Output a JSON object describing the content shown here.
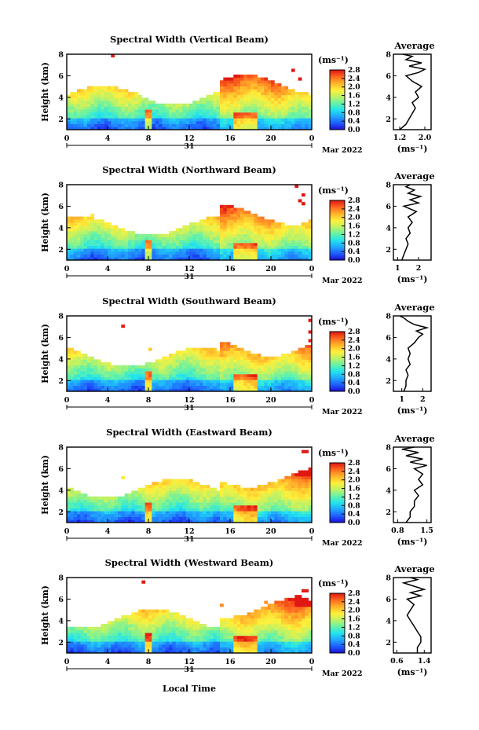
{
  "colorbar": {
    "min": 0.0,
    "max": 2.8,
    "tick_labels": [
      "2.8",
      "2.4",
      "2.0",
      "1.6",
      "1.2",
      "0.8",
      "0.4",
      "0.0"
    ],
    "unit_label": "(ms⁻¹)",
    "colors": [
      "#1a0ad0",
      "#1f5bff",
      "#20a5ff",
      "#22e3ee",
      "#63f2a8",
      "#bdf266",
      "#fff03a",
      "#ffb52a",
      "#ff6a20",
      "#e01712"
    ]
  },
  "common": {
    "y_label": "Height (km)",
    "x_ticks": [
      "0",
      "4",
      "8",
      "12",
      "16",
      "20",
      "0"
    ],
    "date_day": "31",
    "date_month": "Mar 2022",
    "avg_title": "Average",
    "avg_unit": "(ms⁻¹)",
    "x_axis_label": "Local Time"
  },
  "chart_data": [
    {
      "type": "heatmap",
      "title": "Spectral Width (Vertical Beam)",
      "ylim": [
        1,
        8
      ],
      "y_ticks": [
        "2",
        "4",
        "6",
        "8"
      ],
      "xlim": [
        0,
        24
      ],
      "avg_profile": {
        "xlim": [
          1.0,
          2.2
        ],
        "x_ticks": [
          "1.2",
          "2.0"
        ],
        "x_tick_values": [
          1.2,
          2.0
        ],
        "heights": [
          1.0,
          1.5,
          2.0,
          2.5,
          3.0,
          3.5,
          4.0,
          4.5,
          5.0,
          5.5,
          6.0,
          6.3,
          6.6,
          6.9,
          7.2,
          7.5,
          7.8,
          8.0
        ],
        "values": [
          1.2,
          1.4,
          1.5,
          1.6,
          1.7,
          1.6,
          1.8,
          1.7,
          1.9,
          1.6,
          1.4,
          1.8,
          2.0,
          1.5,
          1.9,
          1.4,
          1.6,
          1.3
        ]
      }
    },
    {
      "type": "heatmap",
      "title": "Spectral Width (Northward Beam)",
      "ylim": [
        1,
        8
      ],
      "y_ticks": [
        "2",
        "4",
        "6",
        "8"
      ],
      "xlim": [
        0,
        24
      ],
      "avg_profile": {
        "xlim": [
          0.8,
          2.6
        ],
        "x_ticks": [
          "1",
          "2"
        ],
        "x_tick_values": [
          1.0,
          2.0
        ],
        "heights": [
          1.0,
          1.5,
          2.0,
          2.5,
          3.0,
          3.5,
          4.0,
          4.5,
          5.0,
          5.5,
          6.0,
          6.3,
          6.6,
          6.9,
          7.2,
          7.5,
          7.8,
          8.0
        ],
        "values": [
          1.2,
          1.3,
          1.4,
          1.5,
          1.4,
          1.6,
          1.5,
          1.7,
          1.5,
          1.9,
          1.3,
          2.0,
          1.6,
          2.1,
          1.5,
          1.8,
          1.4,
          1.6
        ]
      }
    },
    {
      "type": "heatmap",
      "title": "Spectral Width (Southward Beam)",
      "ylim": [
        1,
        8
      ],
      "y_ticks": [
        "2",
        "4",
        "6",
        "8"
      ],
      "xlim": [
        0,
        24
      ],
      "avg_profile": {
        "xlim": [
          0.6,
          2.4
        ],
        "x_ticks": [
          "1",
          "2"
        ],
        "x_tick_values": [
          1.0,
          2.0
        ],
        "heights": [
          1.0,
          1.5,
          2.0,
          2.5,
          3.0,
          3.5,
          4.0,
          4.5,
          5.0,
          5.5,
          6.0,
          6.3,
          6.6,
          6.9,
          7.2,
          7.5,
          7.8,
          8.0
        ],
        "values": [
          1.1,
          1.2,
          1.2,
          1.3,
          1.2,
          1.4,
          1.3,
          1.4,
          1.3,
          1.6,
          1.8,
          2.0,
          1.7,
          2.2,
          1.6,
          1.3,
          1.1,
          0.9
        ]
      }
    },
    {
      "type": "heatmap",
      "title": "Spectral Width (Eastward Beam)",
      "ylim": [
        1,
        8
      ],
      "y_ticks": [
        "2",
        "4",
        "6",
        "8"
      ],
      "xlim": [
        0,
        24
      ],
      "avg_profile": {
        "xlim": [
          0.7,
          1.6
        ],
        "x_ticks": [
          "0.8",
          "1.5"
        ],
        "x_tick_values": [
          0.8,
          1.5
        ],
        "heights": [
          1.0,
          1.5,
          2.0,
          2.5,
          3.0,
          3.5,
          4.0,
          4.5,
          5.0,
          5.5,
          6.0,
          6.3,
          6.6,
          6.9,
          7.2,
          7.5,
          7.8,
          8.0
        ],
        "values": [
          1.0,
          1.1,
          1.1,
          1.2,
          1.2,
          1.3,
          1.2,
          1.4,
          1.3,
          1.4,
          1.2,
          1.5,
          1.1,
          1.4,
          1.0,
          1.3,
          0.9,
          1.2
        ]
      }
    },
    {
      "type": "heatmap",
      "title": "Spectral Width (Westward Beam)",
      "ylim": [
        1,
        8
      ],
      "y_ticks": [
        "2",
        "4",
        "6",
        "8"
      ],
      "xlim": [
        0,
        24
      ],
      "avg_profile": {
        "xlim": [
          0.5,
          1.6
        ],
        "x_ticks": [
          "0.6",
          "1.4"
        ],
        "x_tick_values": [
          0.6,
          1.4
        ],
        "heights": [
          1.0,
          1.5,
          2.0,
          2.5,
          3.0,
          3.5,
          4.0,
          4.5,
          5.0,
          5.5,
          6.0,
          6.3,
          6.6,
          6.9,
          7.2,
          7.5,
          7.8,
          8.0
        ],
        "values": [
          1.2,
          1.2,
          1.3,
          1.3,
          1.2,
          1.1,
          1.0,
          0.9,
          1.0,
          1.1,
          0.9,
          1.3,
          1.0,
          1.4,
          1.1,
          0.8,
          1.2,
          1.0
        ]
      }
    }
  ]
}
